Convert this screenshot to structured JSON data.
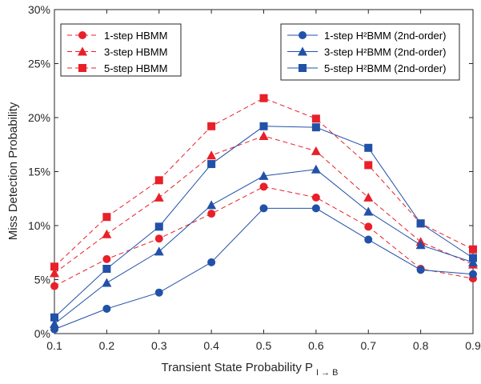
{
  "chart_data": {
    "type": "line",
    "xlabel": "Transient State Probability P",
    "xlabel_subscript": "I → B",
    "ylabel": "Miss Detection Probability",
    "x": [
      0.1,
      0.2,
      0.3,
      0.4,
      0.5,
      0.6,
      0.7,
      0.8,
      0.9
    ],
    "x_ticks": [
      "0.1",
      "0.2",
      "0.3",
      "0.4",
      "0.5",
      "0.6",
      "0.7",
      "0.8",
      "0.9"
    ],
    "xlim": [
      0.1,
      0.9
    ],
    "ylim": [
      0,
      30
    ],
    "y_unit": "%",
    "y_ticks": [
      "0%",
      "5%",
      "10%",
      "15%",
      "20%",
      "25%",
      "30%"
    ],
    "grid": false,
    "legends": [
      {
        "placement": "top-left",
        "entries": [
          "1-step HBMM",
          "3-step HBMM",
          "5-step HBMM"
        ]
      },
      {
        "placement": "top-right",
        "entries": [
          "1-step H²BMM (2nd-order)",
          "3-step H²BMM (2nd-order)",
          "5-step H²BMM (2nd-order)"
        ]
      }
    ],
    "series": [
      {
        "name": "1-step HBMM",
        "color": "#e8202a",
        "line": "dashed",
        "marker": "circle",
        "values": [
          4.4,
          6.9,
          8.8,
          11.1,
          13.6,
          12.6,
          9.9,
          6.0,
          5.1
        ]
      },
      {
        "name": "3-step HBMM",
        "color": "#e8202a",
        "line": "dashed",
        "marker": "triangle",
        "values": [
          5.6,
          9.2,
          12.6,
          16.5,
          18.3,
          16.9,
          12.6,
          8.5,
          6.4
        ]
      },
      {
        "name": "5-step HBMM",
        "color": "#e8202a",
        "line": "dashed",
        "marker": "square",
        "values": [
          6.2,
          10.8,
          14.2,
          19.2,
          21.8,
          19.9,
          15.6,
          10.2,
          7.8
        ]
      },
      {
        "name": "1-step H²BMM (2nd-order)",
        "color": "#2151a8",
        "line": "solid",
        "marker": "circle",
        "values": [
          0.4,
          2.3,
          3.8,
          6.6,
          11.6,
          11.6,
          8.7,
          5.9,
          5.5
        ]
      },
      {
        "name": "3-step H²BMM (2nd-order)",
        "color": "#2151a8",
        "line": "solid",
        "marker": "triangle",
        "values": [
          0.9,
          4.7,
          7.6,
          11.9,
          14.6,
          15.2,
          11.3,
          8.2,
          6.6
        ]
      },
      {
        "name": "5-step H²BMM (2nd-order)",
        "color": "#2151a8",
        "line": "solid",
        "marker": "square",
        "values": [
          1.5,
          6.0,
          9.9,
          15.7,
          19.2,
          19.1,
          17.2,
          10.2,
          7.0
        ]
      }
    ]
  }
}
